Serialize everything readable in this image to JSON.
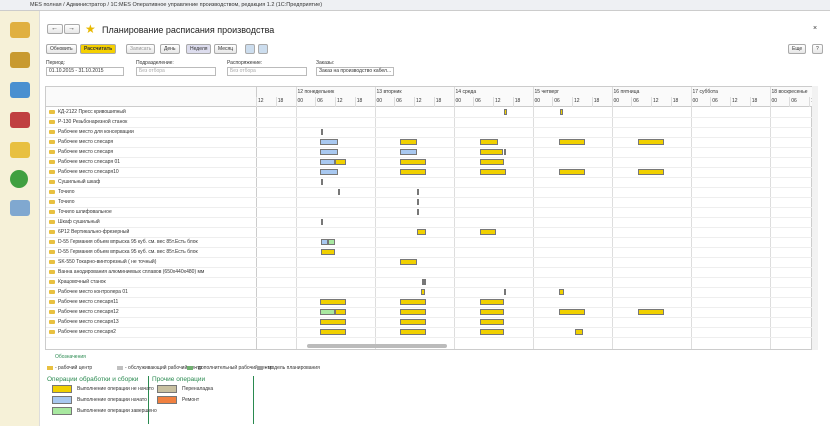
{
  "window_title": "MES полная / Администратор / 1С:MES Оперативное управление производством, редакция 1.2 (1С:Предприятие)",
  "title": "Планирование расписания производства",
  "toolbar": {
    "refresh": "Обновить",
    "calculate": "Рассчитать",
    "save": "Записать",
    "day": "День",
    "week": "Неделя",
    "month": "Месяц",
    "more": "Еще",
    "help": "?"
  },
  "filters": {
    "period_label": "Период:",
    "period_value": "01.10.2015 - 31.10.2015",
    "division_label": "Подразделение:",
    "division_value": "Без отбора",
    "order_label": "Распоряжение:",
    "order_value": "Без отбора",
    "orders_label": "Заказы:",
    "orders_value": "Заказ на производство кабел..."
  },
  "timeline": {
    "days": [
      "12 понедельник",
      "13 вторник",
      "14 среда",
      "15 четверг",
      "16 пятница",
      "17 суббота",
      "18 воскресенье"
    ],
    "hours": [
      "12",
      "18",
      "00",
      "06",
      "12",
      "18",
      "00",
      "06",
      "12",
      "18",
      "00",
      "06",
      "12",
      "18",
      "00",
      "06",
      "12",
      "18",
      "00",
      "06",
      "12",
      "18",
      "00",
      "06",
      "12",
      "18",
      "00",
      "06",
      "12"
    ]
  },
  "rows": [
    {
      "label": "КД-2122  Пресс кривошипный",
      "bars": [
        {
          "s": 75.2,
          "e": 76.4,
          "c": "#f0d000"
        },
        {
          "s": 92.3,
          "e": 93.2,
          "c": "#f0d000"
        }
      ]
    },
    {
      "label": "Р-130    Резьбонарезной станок",
      "bars": []
    },
    {
      "label": "Рабочее место для консервации",
      "bars": [
        {
          "s": 19.8,
          "e": 20.4,
          "c": "#808080"
        }
      ]
    },
    {
      "label": "Рабочее место слесаря",
      "bars": [
        {
          "s": 19.5,
          "e": 25,
          "c": "#a8c8f0"
        },
        {
          "s": 43.8,
          "e": 49,
          "c": "#f0d000"
        },
        {
          "s": 68,
          "e": 73.6,
          "c": "#f0d000"
        },
        {
          "s": 92,
          "e": 100,
          "c": "#f0d000"
        },
        {
          "s": 116,
          "e": 124,
          "c": "#f0d000"
        }
      ]
    },
    {
      "label": "Рабочее место слесаря",
      "bars": [
        {
          "s": 19.5,
          "e": 25,
          "c": "#a8c8f0"
        },
        {
          "s": 43.8,
          "e": 49,
          "c": "#a8c8f0"
        },
        {
          "s": 68,
          "e": 75,
          "c": "#f0d000"
        },
        {
          "s": 75.4,
          "e": 76,
          "c": "#808080"
        }
      ]
    },
    {
      "label": "Рабочее место слесаря 01",
      "bars": [
        {
          "s": 19.5,
          "e": 24,
          "c": "#a8c8f0"
        },
        {
          "s": 24,
          "e": 27.4,
          "c": "#f0d000"
        },
        {
          "s": 43.8,
          "e": 51.7,
          "c": "#f0d000"
        },
        {
          "s": 68,
          "e": 75.4,
          "c": "#f0d000"
        }
      ]
    },
    {
      "label": "Рабочее место слесаря10",
      "bars": [
        {
          "s": 19.5,
          "e": 25,
          "c": "#a8c8f0"
        },
        {
          "s": 43.8,
          "e": 51.7,
          "c": "#f0d000"
        },
        {
          "s": 68,
          "e": 76,
          "c": "#f0d000"
        },
        {
          "s": 92,
          "e": 100,
          "c": "#f0d000"
        },
        {
          "s": 116,
          "e": 124,
          "c": "#f0d000"
        }
      ]
    },
    {
      "label": "Сушильный шкаф",
      "bars": [
        {
          "s": 19.7,
          "e": 20.1,
          "c": "#808080"
        }
      ]
    },
    {
      "label": "Точило",
      "bars": [
        {
          "s": 25,
          "e": 25.4,
          "c": "#808080"
        },
        {
          "s": 49,
          "e": 49.4,
          "c": "#808080"
        }
      ]
    },
    {
      "label": "Точило",
      "bars": [
        {
          "s": 49,
          "e": 49.4,
          "c": "#808080"
        }
      ]
    },
    {
      "label": "Точило шлифовальное",
      "bars": [
        {
          "s": 49,
          "e": 49.4,
          "c": "#808080"
        }
      ]
    },
    {
      "label": "Шкаф сушильный",
      "bars": [
        {
          "s": 19.7,
          "e": 20.1,
          "c": "#808080"
        }
      ]
    },
    {
      "label": "6Р12   Вертикально-фрезерный",
      "bars": [
        {
          "s": 49,
          "e": 51.7,
          "c": "#f0d000"
        },
        {
          "s": 68,
          "e": 73,
          "c": "#f0d000"
        }
      ]
    },
    {
      "label": "D-55 Германия объем впрыска 95 куб. см. вес 85т.Есть блок",
      "bars": [
        {
          "s": 19.8,
          "e": 22,
          "c": "#a8c8f0"
        },
        {
          "s": 22,
          "e": 24,
          "c": "#a8e8a0"
        }
      ]
    },
    {
      "label": "D-55 Германия объем впрыска 95 куб. см. вес 85т.Есть блок",
      "bars": [
        {
          "s": 19.8,
          "e": 24,
          "c": "#f0d000"
        }
      ]
    },
    {
      "label": "SK-550 Токарно-винторезный ( не точный)",
      "bars": [
        {
          "s": 43.8,
          "e": 49,
          "c": "#f0d000"
        }
      ]
    },
    {
      "label": "Ванна анодирования алюминиевых сплавов (650х440х480) мм",
      "bars": []
    },
    {
      "label": "Крацовочный станок",
      "bars": [
        {
          "s": 50.5,
          "e": 50.9,
          "c": "#808080"
        },
        {
          "s": 51.1,
          "e": 51.5,
          "c": "#808080"
        }
      ]
    },
    {
      "label": "Рабочее место контролера 01",
      "bars": [
        {
          "s": 50.2,
          "e": 51.4,
          "c": "#f0d000"
        },
        {
          "s": 75.4,
          "e": 76,
          "c": "#f0d000"
        },
        {
          "s": 92,
          "e": 93.5,
          "c": "#f0d000"
        }
      ]
    },
    {
      "label": "Рабочее место слесаря11",
      "bars": [
        {
          "s": 19.5,
          "e": 27.4,
          "c": "#f0d000"
        },
        {
          "s": 43.8,
          "e": 51.7,
          "c": "#f0d000"
        },
        {
          "s": 68,
          "e": 75.4,
          "c": "#f0d000"
        }
      ]
    },
    {
      "label": "Рабочее место слесаря12",
      "bars": [
        {
          "s": 19.5,
          "e": 24,
          "c": "#a8e8a0"
        },
        {
          "s": 24,
          "e": 27.4,
          "c": "#f0d000"
        },
        {
          "s": 43.8,
          "e": 51.7,
          "c": "#f0d000"
        },
        {
          "s": 68,
          "e": 75.4,
          "c": "#f0d000"
        },
        {
          "s": 92,
          "e": 100,
          "c": "#f0d000"
        },
        {
          "s": 116,
          "e": 124,
          "c": "#f0d000"
        }
      ]
    },
    {
      "label": "Рабочее место слесаря13",
      "bars": [
        {
          "s": 19.5,
          "e": 27.4,
          "c": "#f0d000"
        },
        {
          "s": 43.8,
          "e": 51.7,
          "c": "#f0d000"
        },
        {
          "s": 68,
          "e": 75.4,
          "c": "#f0d000"
        }
      ]
    },
    {
      "label": "Рабочее место слесаря2",
      "bars": [
        {
          "s": 19.5,
          "e": 27.4,
          "c": "#f0d000"
        },
        {
          "s": 43.8,
          "e": 51.7,
          "c": "#f0d000"
        },
        {
          "s": 68,
          "e": 75.4,
          "c": "#f0d000"
        },
        {
          "s": 96.9,
          "e": 99.4,
          "c": "#f0d000"
        }
      ]
    }
  ],
  "legend": {
    "title": "Обозначения",
    "icons": [
      "- рабочий центр",
      "- обслуживающий рабочий центр",
      "- дополнительный рабочий центр",
      "- модель планирования"
    ],
    "groups": [
      {
        "title": "Операции обработки и сборки",
        "items": [
          {
            "label": "Выполнение операции не начато",
            "color": "#f0d000"
          },
          {
            "label": "Выполнение операции начато",
            "color": "#a8c8f0"
          },
          {
            "label": "Выполнение операции завершено",
            "color": "#a8e8a0"
          }
        ]
      },
      {
        "title": "Прочие операции",
        "items": [
          {
            "label": "Переналадка",
            "color": "#c8c0a0"
          },
          {
            "label": "Ремонт",
            "color": "#f08040"
          }
        ]
      }
    ]
  }
}
